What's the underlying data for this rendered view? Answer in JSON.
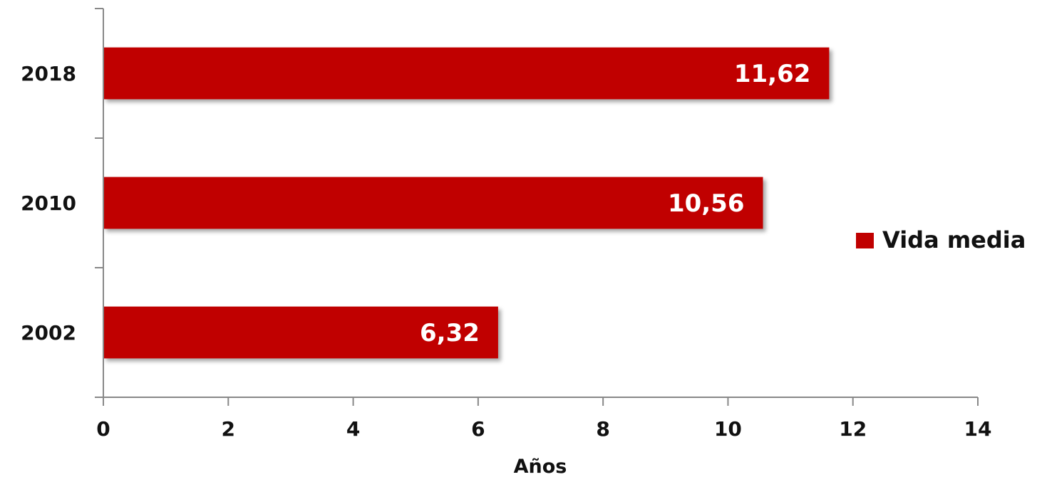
{
  "chart_data": {
    "type": "bar",
    "orientation": "horizontal",
    "categories": [
      "2018",
      "2010",
      "2002"
    ],
    "series": [
      {
        "name": "Vida media",
        "values": [
          11.62,
          10.56,
          6.32
        ],
        "data_labels": [
          "11,62",
          "10,56",
          "6,32"
        ],
        "color": "#c00000"
      }
    ],
    "xlabel": "Años",
    "ylabel": "",
    "xlim": [
      0,
      14
    ],
    "x_ticks": [
      "0",
      "2",
      "4",
      "6",
      "8",
      "10",
      "12",
      "14"
    ],
    "grid": false,
    "legend_position": "right"
  }
}
